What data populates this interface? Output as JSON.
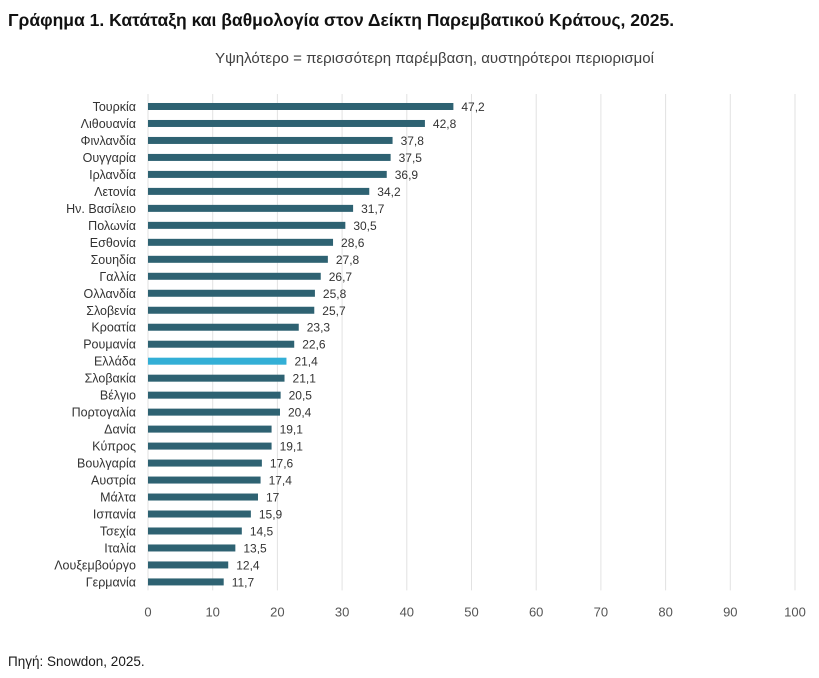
{
  "title": "Γράφημα 1. Κατάταξη και βαθμολογία στον Δείκτη Παρεμβατικού Κράτους, 2025.",
  "source": "Πηγή: Snowdon, 2025.",
  "chart_data": {
    "type": "bar",
    "orientation": "horizontal",
    "subtitle": "Υψηλότερο = περισσότερη παρέμβαση, αυστηρότεροι περιορισμοί",
    "categories": [
      "Τουρκία",
      "Λιθουανία",
      "Φινλανδία",
      "Ουγγαρία",
      "Ιρλανδία",
      "Λετονία",
      "Ην. Βασίλειο",
      "Πολωνία",
      "Εσθονία",
      "Σουηδία",
      "Γαλλία",
      "Ολλανδία",
      "Σλοβενία",
      "Κροατία",
      "Ρουμανία",
      "Ελλάδα",
      "Σλοβακία",
      "Βέλγιο",
      "Πορτογαλία",
      "Δανία",
      "Κύπρος",
      "Βουλγαρία",
      "Αυστρία",
      "Μάλτα",
      "Ισπανία",
      "Τσεχία",
      "Ιταλία",
      "Λουξεμβούργο",
      "Γερμανία"
    ],
    "values": [
      47.2,
      42.8,
      37.8,
      37.5,
      36.9,
      34.2,
      31.7,
      30.5,
      28.6,
      27.8,
      26.7,
      25.8,
      25.7,
      23.3,
      22.6,
      21.4,
      21.1,
      20.5,
      20.4,
      19.1,
      19.1,
      17.6,
      17.4,
      17,
      15.9,
      14.5,
      13.5,
      12.4,
      11.7
    ],
    "value_labels": [
      "47,2",
      "42,8",
      "37,8",
      "37,5",
      "36,9",
      "34,2",
      "31,7",
      "30,5",
      "28,6",
      "27,8",
      "26,7",
      "25,8",
      "25,7",
      "23,3",
      "22,6",
      "21,4",
      "21,1",
      "20,5",
      "20,4",
      "19,1",
      "19,1",
      "17,6",
      "17,4",
      "17",
      "15,9",
      "14,5",
      "13,5",
      "12,4",
      "11,7"
    ],
    "highlight": "Ελλάδα",
    "xlim": [
      0,
      100
    ],
    "xticks": [
      0,
      10,
      20,
      30,
      40,
      50,
      60,
      70,
      80,
      90,
      100
    ],
    "grid": true,
    "colors": {
      "bar": "#2e6272",
      "highlight": "#33afd6",
      "grid": "#e2e2e2"
    }
  }
}
